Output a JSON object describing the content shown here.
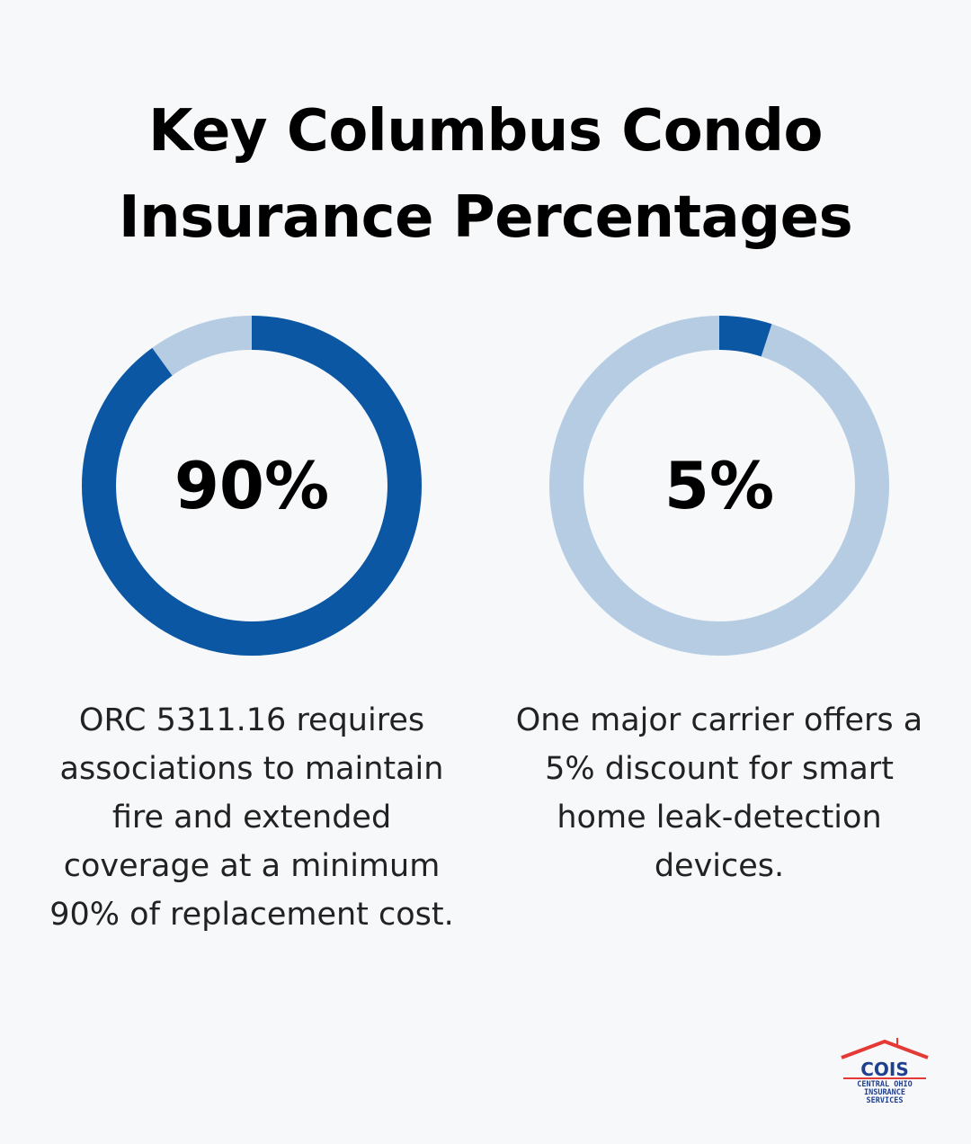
{
  "title": {
    "line1": "Key Columbus Condo",
    "line2": "Insurance Percentages"
  },
  "colors": {
    "accent": "#0b57a4",
    "track": "#b5cce3",
    "background": "#f7f8fa",
    "logo_red": "#e53935",
    "logo_blue": "#1f3f8f"
  },
  "chart_data": [
    {
      "type": "pie",
      "variant": "donut",
      "value": 90,
      "max": 100,
      "center_label": "90%",
      "caption_lines": [
        "ORC 5311.16 requires",
        "associations to maintain",
        "fire and extended",
        "coverage at a minimum",
        "90% of replacement cost."
      ]
    },
    {
      "type": "pie",
      "variant": "donut",
      "value": 5,
      "max": 100,
      "center_label": "5%",
      "caption_lines": [
        "One major carrier offers a",
        "5% discount for smart",
        "home leak-detection",
        "devices."
      ]
    }
  ],
  "logo": {
    "name": "COIS",
    "line1": "CENTRAL OHIO",
    "line2": "INSURANCE",
    "line3": "SERVICES"
  }
}
